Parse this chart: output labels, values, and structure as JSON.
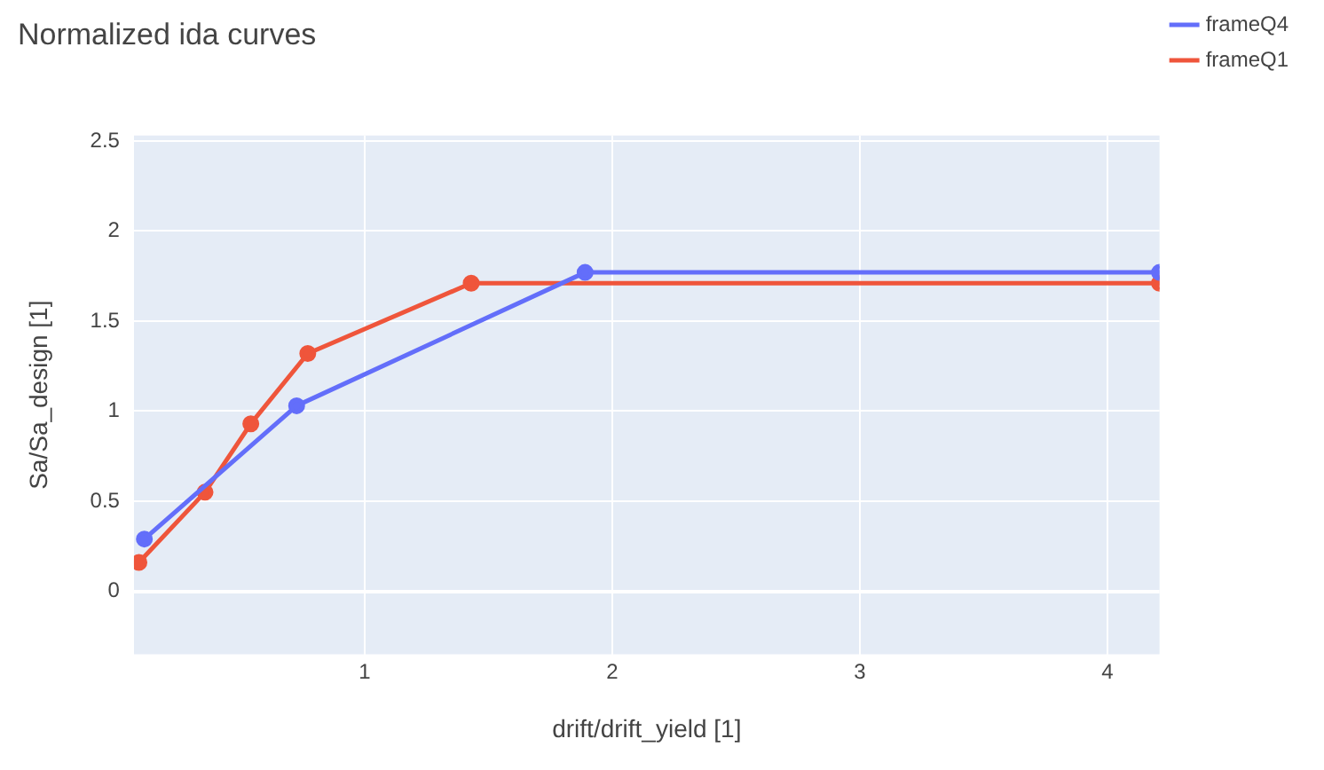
{
  "chart_data": {
    "type": "line",
    "title": "Normalized ida curves",
    "xlabel": "drift/drift_yield [1]",
    "ylabel": "Sa/Sa_design [1]",
    "series": [
      {
        "name": "frameQ4",
        "color": "#636efa",
        "x": [
          0.11,
          0.725,
          1.89,
          4.21
        ],
        "values": [
          0.29,
          1.03,
          1.77,
          1.77
        ]
      },
      {
        "name": "frameQ1",
        "color": "#ef553b",
        "x": [
          0.088,
          0.355,
          0.54,
          0.77,
          1.43,
          4.21
        ],
        "values": [
          0.16,
          0.55,
          0.93,
          1.32,
          1.71,
          1.71
        ]
      }
    ],
    "xlim": [
      0.068,
      4.21
    ],
    "xticks": [
      1,
      2,
      3,
      4
    ],
    "ylim": [
      -0.35,
      2.53
    ],
    "yticks": [
      0,
      0.5,
      1,
      1.5,
      2,
      2.5
    ],
    "grid": true,
    "legend": "top right",
    "marker": "circle",
    "line_style": "solid"
  }
}
